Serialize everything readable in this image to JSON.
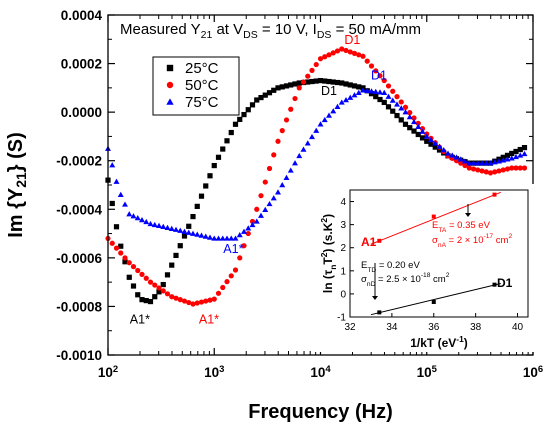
{
  "chart_data": [
    {
      "type": "scatter",
      "title": "",
      "annotation": {
        "parts": [
          {
            "t": "Measured Y"
          },
          {
            "t": "21",
            "sub": true
          },
          {
            "t": " at V"
          },
          {
            "t": "DS",
            "sub": true
          },
          {
            "t": " = 10 V, I"
          },
          {
            "t": "DS",
            "sub": true
          },
          {
            "t": " = 50 mA/mm"
          }
        ]
      },
      "xlabel": "Frequency (Hz)",
      "ylabel": {
        "parts": [
          {
            "t": "Im {Y"
          },
          {
            "t": "21",
            "sub": true
          },
          {
            "t": "} (S)"
          }
        ]
      },
      "xscale": "log",
      "xlim": [
        100,
        1000000
      ],
      "ylim": [
        -0.001,
        0.0004
      ],
      "x_tick_exponents": [
        2,
        3,
        4,
        5,
        6
      ],
      "x_tick_base": "10",
      "y_ticks": [
        0.0004,
        0.0002,
        0.0,
        -0.0002,
        -0.0004,
        -0.0006,
        -0.0008,
        -0.001
      ],
      "y_tick_labels": [
        "0.0004",
        "0.0002",
        "0.0000",
        "-0.0002",
        "-0.0004",
        "-0.0006",
        "-0.0008",
        "-0.0010"
      ],
      "legend_position": "top-left",
      "series": [
        {
          "name": "25°C",
          "color": "#000000",
          "marker": "square",
          "anchors": [
            [
              2.0,
              -0.00028
            ],
            [
              2.1,
              -0.00052
            ],
            [
              2.2,
              -0.00068
            ],
            [
              2.3,
              -0.00077
            ],
            [
              2.4,
              -0.00078
            ],
            [
              2.5,
              -0.00073
            ],
            [
              2.6,
              -0.00063
            ],
            [
              2.8,
              -0.00043
            ],
            [
              3.0,
              -0.00022
            ],
            [
              3.2,
              -5e-05
            ],
            [
              3.4,
              5e-05
            ],
            [
              3.6,
              0.0001
            ],
            [
              3.8,
              0.00012
            ],
            [
              4.0,
              0.00013
            ],
            [
              4.2,
              0.00012
            ],
            [
              4.4,
              0.0001
            ],
            [
              4.6,
              4e-05
            ],
            [
              4.8,
              -5e-05
            ],
            [
              5.0,
              -0.00012
            ],
            [
              5.2,
              -0.00018
            ],
            [
              5.4,
              -0.00021
            ],
            [
              5.6,
              -0.00021
            ],
            [
              5.8,
              -0.00017
            ],
            [
              6.0,
              -0.00013
            ]
          ]
        },
        {
          "name": "50°C",
          "color": "#ff0000",
          "marker": "circle",
          "anchors": [
            [
              2.0,
              -0.00052
            ],
            [
              2.2,
              -0.00062
            ],
            [
              2.4,
              -0.0007
            ],
            [
              2.6,
              -0.00076
            ],
            [
              2.8,
              -0.00079
            ],
            [
              3.0,
              -0.00077
            ],
            [
              3.2,
              -0.00065
            ],
            [
              3.4,
              -0.0004
            ],
            [
              3.6,
              -0.00012
            ],
            [
              3.8,
              0.0001
            ],
            [
              4.0,
              0.00022
            ],
            [
              4.2,
              0.00026
            ],
            [
              4.4,
              0.00023
            ],
            [
              4.6,
              0.00013
            ],
            [
              4.8,
              2e-05
            ],
            [
              5.0,
              -9e-05
            ],
            [
              5.2,
              -0.00018
            ],
            [
              5.4,
              -0.00023
            ],
            [
              5.6,
              -0.00025
            ],
            [
              5.8,
              -0.00023
            ],
            [
              6.0,
              -0.00023
            ]
          ]
        },
        {
          "name": "75°C",
          "color": "#0000ff",
          "marker": "triangle",
          "anchors": [
            [
              2.0,
              -0.00015
            ],
            [
              2.1,
              -0.00032
            ],
            [
              2.2,
              -0.00042
            ],
            [
              2.4,
              -0.00046
            ],
            [
              2.6,
              -0.00048
            ],
            [
              2.8,
              -0.0005
            ],
            [
              3.0,
              -0.00052
            ],
            [
              3.2,
              -0.00052
            ],
            [
              3.4,
              -0.00045
            ],
            [
              3.6,
              -0.00033
            ],
            [
              3.8,
              -0.00018
            ],
            [
              4.0,
              -5e-05
            ],
            [
              4.2,
              4e-05
            ],
            [
              4.4,
              9e-05
            ],
            [
              4.6,
              8e-05
            ],
            [
              4.8,
              0.0
            ],
            [
              5.0,
              -0.0001
            ],
            [
              5.2,
              -0.00017
            ],
            [
              5.4,
              -0.00021
            ],
            [
              5.6,
              -0.00021
            ],
            [
              5.8,
              -0.00019
            ],
            [
              6.0,
              -0.00016
            ]
          ]
        }
      ],
      "point_labels": [
        {
          "text": "A1*",
          "x": 2.3,
          "y": -0.00087,
          "color": "#000000"
        },
        {
          "text": "A1*",
          "x": 2.95,
          "y": -0.00087,
          "color": "#ff0000"
        },
        {
          "text": "A1*",
          "x": 3.18,
          "y": -0.00058,
          "color": "#0000ff"
        },
        {
          "text": "D1",
          "x": 4.08,
          "y": 7e-05,
          "color": "#000000"
        },
        {
          "text": "D1",
          "x": 4.3,
          "y": 0.00028,
          "color": "#ff0000"
        },
        {
          "text": "D1",
          "x": 4.55,
          "y": 0.000135,
          "color": "#0000ff"
        }
      ]
    },
    {
      "type": "scatter",
      "title": "",
      "xlabel": {
        "parts": [
          {
            "t": "1/kT (eV"
          },
          {
            "t": "-1",
            "sup": true
          },
          {
            "t": ")"
          }
        ]
      },
      "ylabel": {
        "parts": [
          {
            "t": "ln (τ"
          },
          {
            "t": "n",
            "sub": true
          },
          {
            "t": "T"
          },
          {
            "t": "2",
            "sup": true
          },
          {
            "t": ") (s.K"
          },
          {
            "t": "2",
            "sup": true
          },
          {
            "t": ")"
          }
        ]
      },
      "xlim": [
        32,
        40.5
      ],
      "ylim": [
        -1,
        4.5
      ],
      "x_ticks": [
        32,
        34,
        36,
        38,
        40
      ],
      "y_ticks": [
        -1,
        0,
        1,
        2,
        3,
        4
      ],
      "series": [
        {
          "name": "A1",
          "color": "#ff0000",
          "marker": "square",
          "x": [
            33.4,
            36.0,
            38.9
          ],
          "y": [
            2.3,
            3.35,
            4.3
          ],
          "fit": {
            "x": [
              33.0,
              39.2
            ],
            "y": [
              2.15,
              4.4
            ]
          },
          "label": "A1",
          "notes": [
            {
              "parts": [
                {
                  "t": "E"
                },
                {
                  "t": "TA",
                  "sub": true
                },
                {
                  "t": " = 0.35 eV"
                }
              ]
            },
            {
              "parts": [
                {
                  "t": "σ"
                },
                {
                  "t": "nA",
                  "sub": true
                },
                {
                  "t": " = 2 × 10"
                },
                {
                  "t": "-17",
                  "sup": true
                },
                {
                  "t": " cm"
                },
                {
                  "t": "2",
                  "sup": true
                }
              ]
            }
          ]
        },
        {
          "name": "D1",
          "color": "#000000",
          "marker": "square",
          "x": [
            33.4,
            36.0,
            38.9
          ],
          "y": [
            -0.8,
            -0.35,
            0.4
          ],
          "fit": {
            "x": [
              33.0,
              39.2
            ],
            "y": [
              -0.9,
              0.45
            ]
          },
          "label": "D1",
          "notes": [
            {
              "parts": [
                {
                  "t": "E"
                },
                {
                  "t": "TD",
                  "sub": true
                },
                {
                  "t": " = 0.20 eV"
                }
              ]
            },
            {
              "parts": [
                {
                  "t": "σ"
                },
                {
                  "t": "nD",
                  "sub": true
                },
                {
                  "t": " = 2.5 × 10"
                },
                {
                  "t": "-18",
                  "sup": true
                },
                {
                  "t": " cm"
                },
                {
                  "t": "2",
                  "sup": true
                }
              ]
            }
          ]
        }
      ]
    }
  ]
}
